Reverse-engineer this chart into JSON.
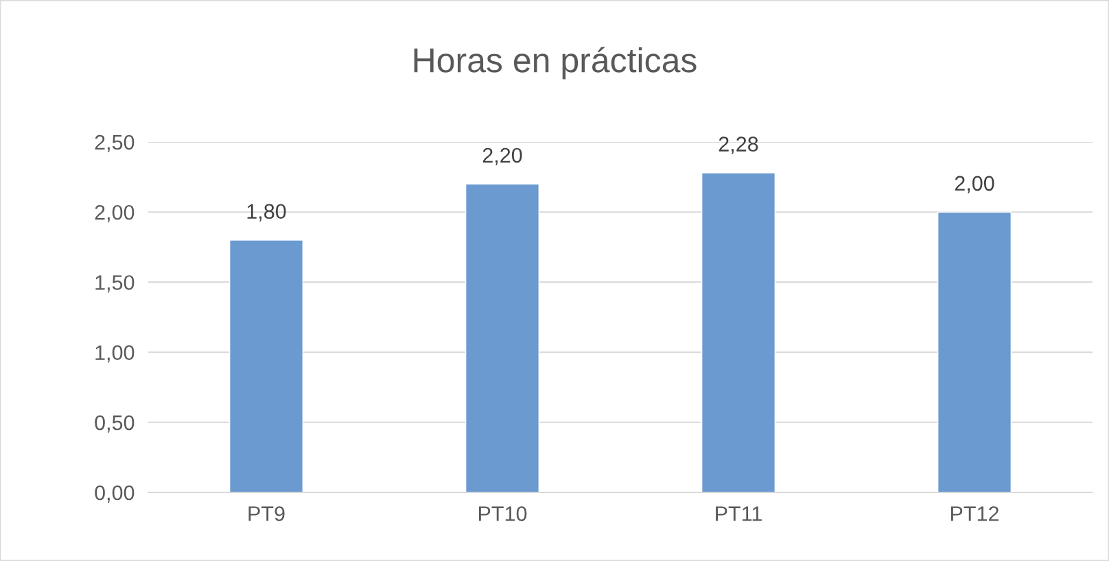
{
  "chart_data": {
    "type": "bar",
    "title": "Horas en prácticas",
    "categories": [
      "PT9",
      "PT10",
      "PT11",
      "PT12"
    ],
    "values": [
      1.8,
      2.2,
      2.28,
      2.0
    ],
    "value_labels": [
      "1,80",
      "2,20",
      "2,28",
      "2,00"
    ],
    "color": "#6a9acf",
    "ylim": [
      0,
      2.5
    ],
    "yticks": [
      {
        "value": 0,
        "label": "0,00"
      },
      {
        "value": 0.5,
        "label": "0,50"
      },
      {
        "value": 1.0,
        "label": "1,00"
      },
      {
        "value": 1.5,
        "label": "1,50"
      },
      {
        "value": 2.0,
        "label": "2,00"
      },
      {
        "value": 2.5,
        "label": "2,50"
      }
    ],
    "grid": "y",
    "legend": false
  }
}
